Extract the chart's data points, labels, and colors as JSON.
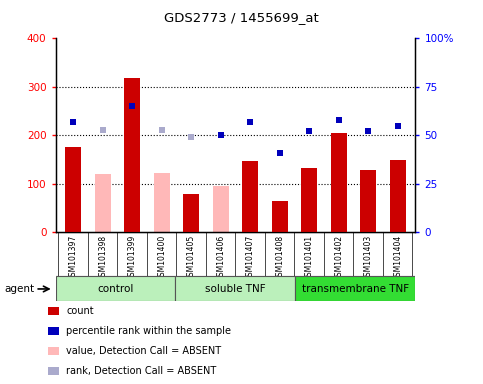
{
  "title": "GDS2773 / 1455699_at",
  "samples": [
    "GSM101397",
    "GSM101398",
    "GSM101399",
    "GSM101400",
    "GSM101405",
    "GSM101406",
    "GSM101407",
    "GSM101408",
    "GSM101401",
    "GSM101402",
    "GSM101403",
    "GSM101404"
  ],
  "groups": [
    {
      "label": "control",
      "color": "#bbf0bb",
      "start": 0,
      "end": 4
    },
    {
      "label": "soluble TNF",
      "color": "#bbf0bb",
      "start": 4,
      "end": 8
    },
    {
      "label": "transmembrane TNF",
      "color": "#33dd33",
      "start": 8,
      "end": 12
    }
  ],
  "red_bars": [
    175,
    null,
    318,
    null,
    80,
    null,
    148,
    65,
    133,
    204,
    128,
    149
  ],
  "pink_bars": [
    null,
    120,
    null,
    122,
    null,
    95,
    null,
    null,
    null,
    null,
    null,
    null
  ],
  "blue_squares": [
    57,
    null,
    65,
    null,
    null,
    50,
    57,
    41,
    52,
    58,
    52,
    55
  ],
  "purple_squares": [
    null,
    53,
    null,
    53,
    49,
    null,
    null,
    null,
    null,
    null,
    null,
    null
  ],
  "bar_color_red": "#cc0000",
  "bar_color_pink": "#ffb8b8",
  "square_color_blue": "#0000bb",
  "square_color_purple": "#aaaacc",
  "ylim_left": [
    0,
    400
  ],
  "ylim_right": [
    0,
    100
  ],
  "yticks_left": [
    0,
    100,
    200,
    300,
    400
  ],
  "yticks_right": [
    0,
    25,
    50,
    75,
    100
  ],
  "ytick_labels_right": [
    "0",
    "25",
    "50",
    "75",
    "100%"
  ],
  "legend_items": [
    {
      "label": "count",
      "color": "#cc0000"
    },
    {
      "label": "percentile rank within the sample",
      "color": "#0000bb"
    },
    {
      "label": "value, Detection Call = ABSENT",
      "color": "#ffb8b8"
    },
    {
      "label": "rank, Detection Call = ABSENT",
      "color": "#aaaacc"
    }
  ]
}
